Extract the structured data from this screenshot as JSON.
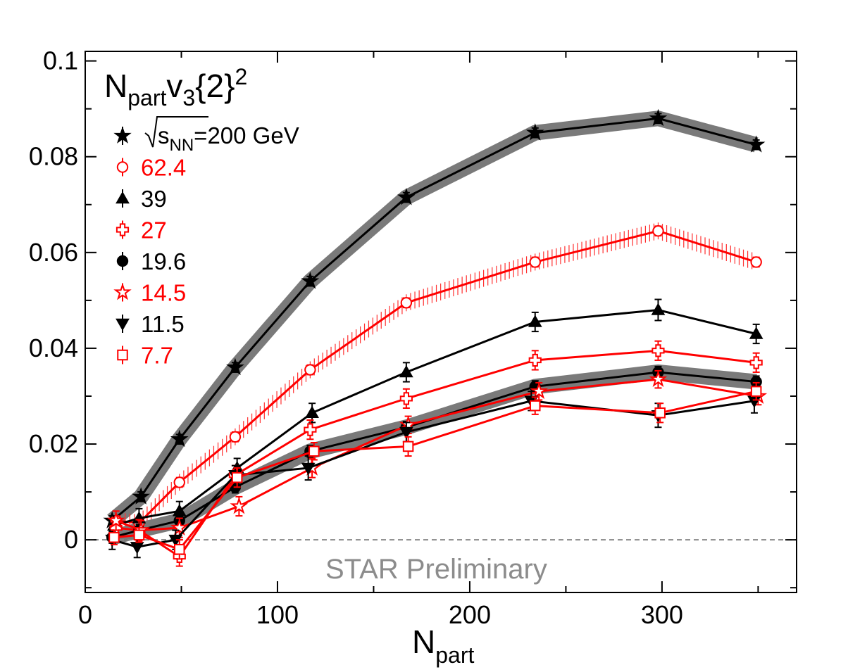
{
  "chart_data": {
    "type": "line",
    "title_parts": {
      "main": "N",
      "sub": "part",
      "main2": "v",
      "sub2": "3",
      "braces": "{2}",
      "sup": "2"
    },
    "xlabel": {
      "main": "N",
      "sub": "part"
    },
    "ylabel": "",
    "xlim": [
      0,
      370
    ],
    "ylim": [
      -0.011,
      0.102
    ],
    "x_ticks": [
      0,
      100,
      200,
      300
    ],
    "x_tick_labels": [
      "0",
      "100",
      "200",
      "300"
    ],
    "y_ticks": [
      0,
      0.02,
      0.04,
      0.06,
      0.08,
      0.1
    ],
    "y_tick_labels": [
      "0",
      "0.02",
      "0.04",
      "0.06",
      "0.08",
      "0.1"
    ],
    "reference_line_y": 0,
    "watermark": "STAR Preliminary",
    "legend_position": "top-left",
    "legend_first_label": {
      "prefix": "s",
      "sub": "NN",
      "suffix": "=200 GeV"
    },
    "series": [
      {
        "name": "200",
        "legend_label": "=200 GeV",
        "color": "#000000",
        "marker": "star-filled",
        "band": "gray",
        "x": [
          14,
          29,
          49,
          78,
          117,
          167,
          234,
          298,
          349
        ],
        "y": [
          0.004,
          0.009,
          0.021,
          0.036,
          0.054,
          0.0715,
          0.085,
          0.088,
          0.0825
        ],
        "err": [
          0.001,
          0.001,
          0.001,
          0.001,
          0.001,
          0.001,
          0.001,
          0.001,
          0.001
        ]
      },
      {
        "name": "62.4",
        "legend_label": "62.4",
        "color": "#ff0000",
        "marker": "circle-open",
        "band": "red-hatch",
        "x": [
          16,
          28,
          49,
          78,
          117,
          167,
          234,
          298,
          349
        ],
        "y": [
          0.004,
          0.0035,
          0.012,
          0.0215,
          0.0355,
          0.0495,
          0.058,
          0.0645,
          0.058
        ],
        "err": [
          0.001,
          0.001,
          0.001,
          0.001,
          0.001,
          0.001,
          0.001,
          0.001,
          0.001
        ]
      },
      {
        "name": "39",
        "legend_label": "39",
        "color": "#000000",
        "marker": "triangle-up-filled",
        "band": "none",
        "x": [
          15,
          28,
          49,
          79,
          118,
          167,
          234,
          298,
          349
        ],
        "y": [
          0.003,
          0.0045,
          0.006,
          0.015,
          0.0265,
          0.035,
          0.0455,
          0.048,
          0.043
        ],
        "err": [
          0.002,
          0.002,
          0.002,
          0.002,
          0.002,
          0.002,
          0.002,
          0.0022,
          0.002
        ]
      },
      {
        "name": "27",
        "legend_label": "27",
        "color": "#ff0000",
        "marker": "cross-open",
        "band": "none",
        "x": [
          16,
          28,
          49,
          78,
          117,
          167,
          234,
          298,
          349
        ],
        "y": [
          0.0025,
          0.002,
          -0.0035,
          0.0135,
          0.023,
          0.0295,
          0.0375,
          0.0395,
          0.037
        ],
        "err": [
          0.002,
          0.0022,
          0.002,
          0.002,
          0.002,
          0.002,
          0.002,
          0.002,
          0.002
        ]
      },
      {
        "name": "19.6",
        "legend_label": "19.6",
        "color": "#000000",
        "marker": "circle-filled",
        "band": "gray",
        "x": [
          14,
          28,
          49,
          78,
          117,
          167,
          234,
          298,
          349
        ],
        "y": [
          0.0005,
          0.002,
          0.004,
          0.011,
          0.0185,
          0.0235,
          0.032,
          0.035,
          0.033
        ],
        "err": [
          0.0012,
          0.0012,
          0.0012,
          0.0012,
          0.0012,
          0.0012,
          0.0012,
          0.0012,
          0.0012
        ]
      },
      {
        "name": "14.5",
        "legend_label": "14.5",
        "color": "#ff0000",
        "marker": "star-open",
        "band": "none",
        "x": [
          16,
          29,
          49,
          80,
          118,
          168,
          236,
          298,
          350
        ],
        "y": [
          0.004,
          0.002,
          0.0025,
          0.007,
          0.015,
          0.024,
          0.031,
          0.0335,
          0.03
        ],
        "err": [
          0.002,
          0.002,
          0.002,
          0.002,
          0.002,
          0.0018,
          0.0018,
          0.0018,
          0.0018
        ]
      },
      {
        "name": "11.5",
        "legend_label": "11.5",
        "color": "#000000",
        "marker": "triangle-down-filled",
        "band": "none",
        "x": [
          14,
          27,
          47,
          78,
          116,
          167,
          232,
          298,
          348
        ],
        "y": [
          0.0,
          -0.0015,
          0.0,
          0.0135,
          0.015,
          0.0225,
          0.029,
          0.026,
          0.029
        ],
        "err": [
          0.002,
          0.0022,
          0.002,
          0.002,
          0.0025,
          0.002,
          0.002,
          0.0025,
          0.0025
        ]
      },
      {
        "name": "7.7",
        "legend_label": "7.7",
        "color": "#ff0000",
        "marker": "square-open",
        "band": "none",
        "x": [
          15,
          28,
          49,
          79,
          119,
          168,
          234,
          299,
          349
        ],
        "y": [
          0.0005,
          0.001,
          -0.002,
          0.013,
          0.0185,
          0.0195,
          0.028,
          0.0265,
          0.031
        ],
        "err": [
          0.0015,
          0.0015,
          0.002,
          0.002,
          0.0018,
          0.002,
          0.0018,
          0.002,
          0.0018
        ]
      }
    ]
  }
}
